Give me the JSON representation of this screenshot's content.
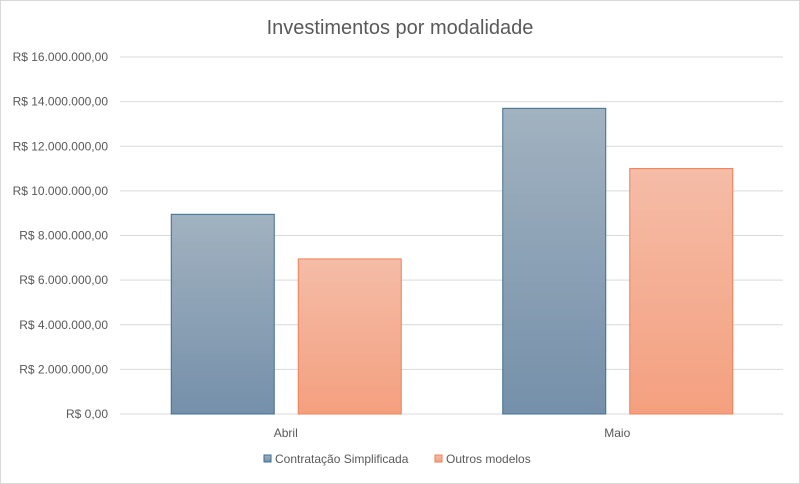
{
  "chart_data": {
    "type": "bar",
    "title": "Investimentos por modalidade",
    "categories": [
      "Abril",
      "Maio"
    ],
    "series": [
      {
        "name": "Contratação Simplificada",
        "values": [
          8950000,
          13700000
        ]
      },
      {
        "name": "Outros modelos",
        "values": [
          6950000,
          11000000
        ]
      }
    ],
    "ylim": [
      0,
      16000000
    ],
    "y_ticks": [
      {
        "value": 0,
        "label": "R$ 0,00"
      },
      {
        "value": 2000000,
        "label": "R$ 2.000.000,00"
      },
      {
        "value": 4000000,
        "label": "R$ 4.000.000,00"
      },
      {
        "value": 6000000,
        "label": "R$ 6.000.000,00"
      },
      {
        "value": 8000000,
        "label": "R$ 8.000.000,00"
      },
      {
        "value": 10000000,
        "label": "R$ 10.000.000,00"
      },
      {
        "value": 12000000,
        "label": "R$ 12.000.000,00"
      },
      {
        "value": 14000000,
        "label": "R$ 14.000.000,00"
      },
      {
        "value": 16000000,
        "label": "R$ 16.000.000,00"
      }
    ],
    "grid": true,
    "legend_position": "bottom",
    "colors": {
      "series": [
        {
          "top": "#a2b2c0",
          "bottom": "#7590aa",
          "stroke": "#3e6f91"
        },
        {
          "top": "#f5bca7",
          "bottom": "#f4a07f",
          "stroke": "#ef7f55"
        }
      ],
      "grid": "#d9d9d9",
      "text": "#595959"
    }
  }
}
